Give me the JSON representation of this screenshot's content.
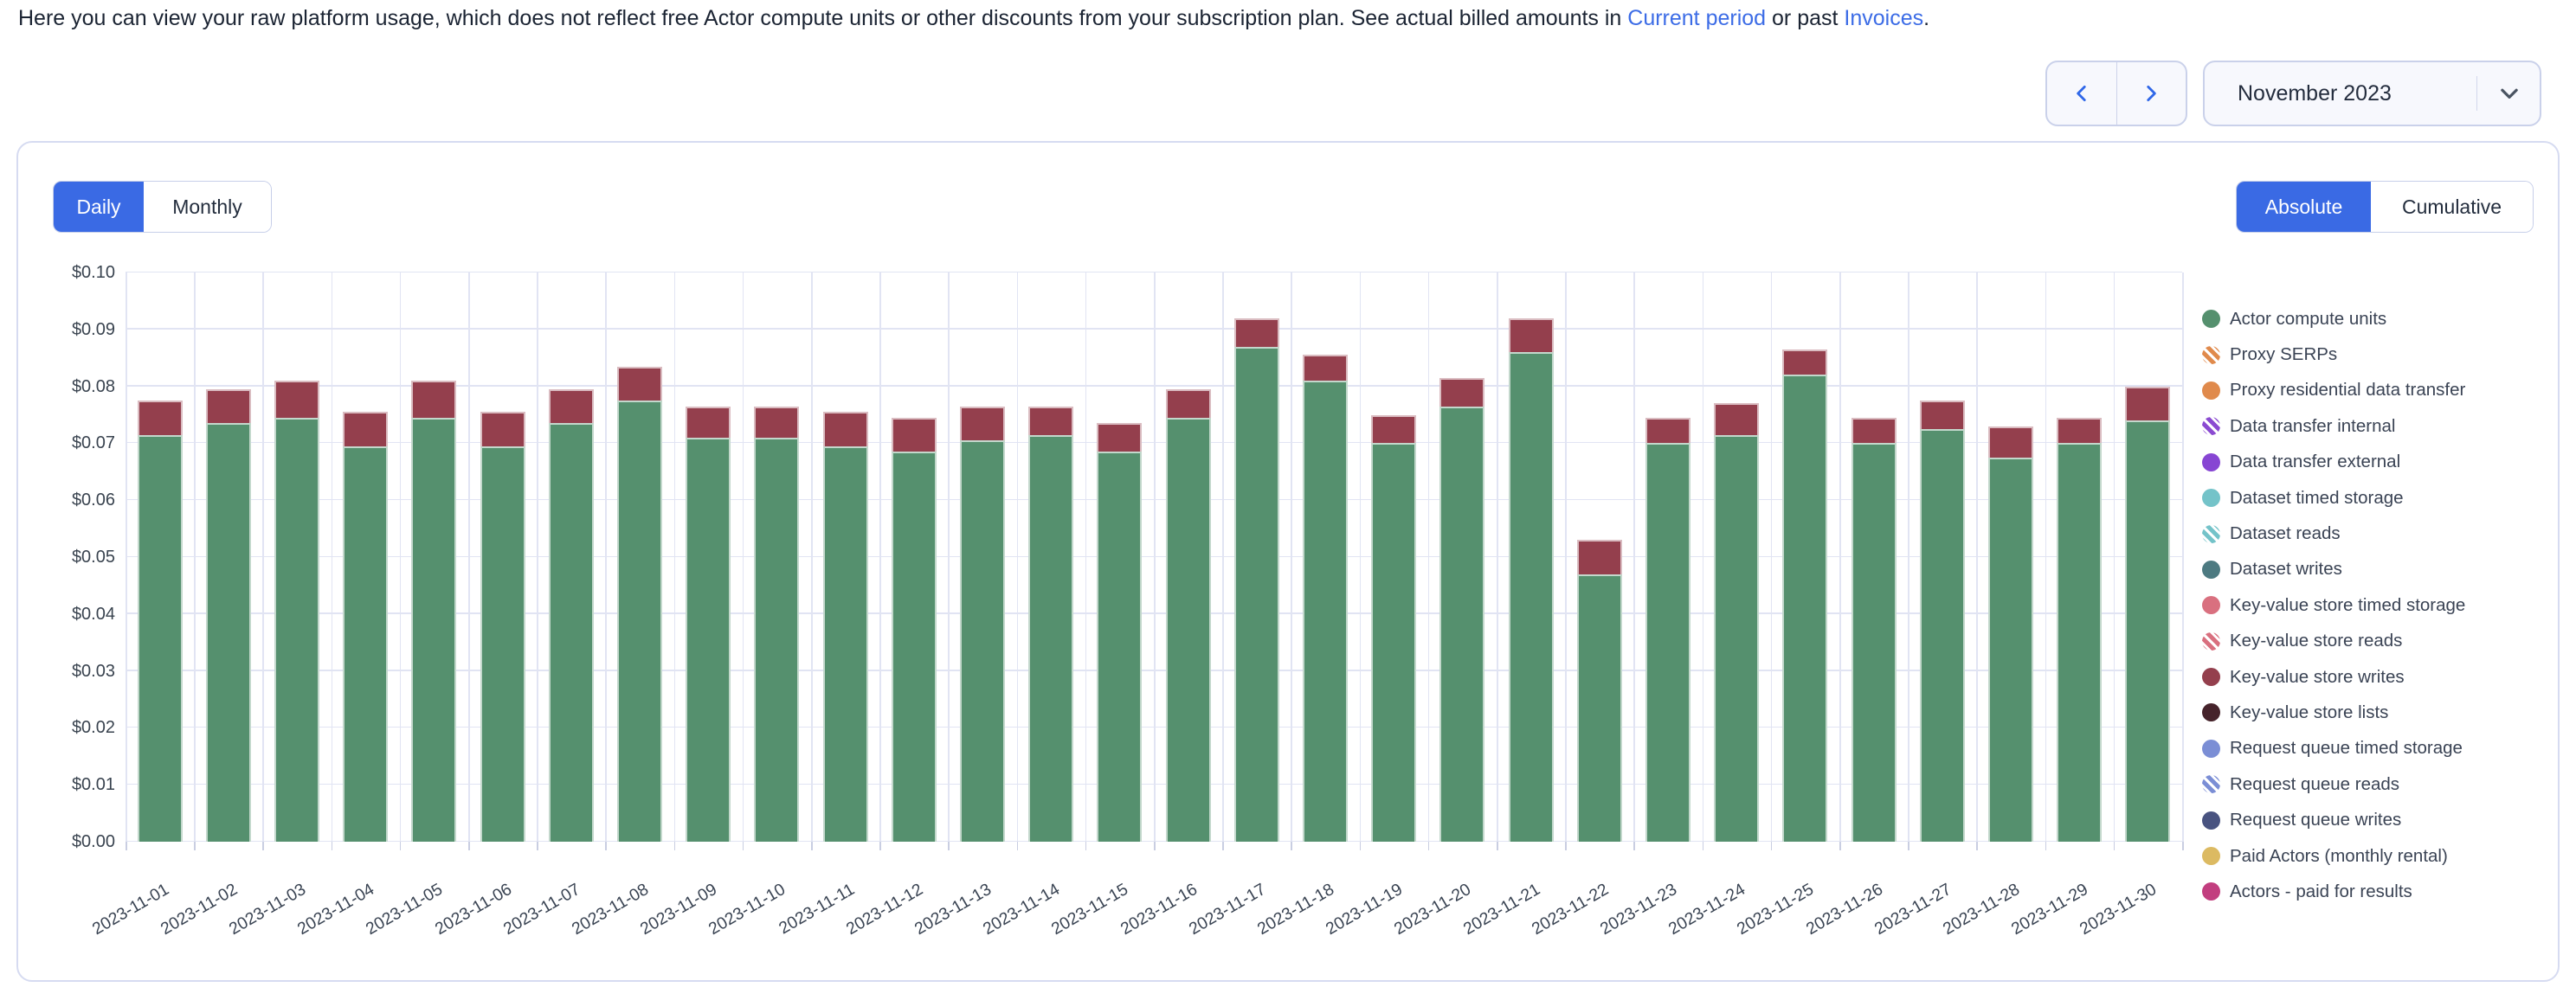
{
  "intro": {
    "text_before_link1": "Here you can view your raw platform usage, which does not reflect free Actor compute units or other discounts from your subscription plan. See actual billed amounts in ",
    "link1": "Current period",
    "text_between_links": " or past ",
    "link2": "Invoices",
    "text_after_links": "."
  },
  "controls": {
    "prev_icon": "chevron-left-icon",
    "next_icon": "chevron-right-icon",
    "month_label": "November 2023",
    "dropdown_icon": "chevron-down-icon",
    "accent_blue": "#3a6ae4"
  },
  "toggles": {
    "daily": "Daily",
    "monthly": "Monthly",
    "absolute": "Absolute",
    "cumulative": "Cumulative",
    "selected_granularity": "Daily",
    "selected_mode": "Absolute"
  },
  "chart_data": {
    "type": "bar",
    "stacked": true,
    "title": "",
    "xlabel": "",
    "ylabel": "",
    "ylim": [
      0,
      0.1
    ],
    "y_ticks": [
      "$0.00",
      "$0.01",
      "$0.02",
      "$0.03",
      "$0.04",
      "$0.05",
      "$0.06",
      "$0.07",
      "$0.08",
      "$0.09",
      "$0.10"
    ],
    "grid": true,
    "legend_position": "right",
    "categories": [
      "2023-11-01",
      "2023-11-02",
      "2023-11-03",
      "2023-11-04",
      "2023-11-05",
      "2023-11-06",
      "2023-11-07",
      "2023-11-08",
      "2023-11-09",
      "2023-11-10",
      "2023-11-11",
      "2023-11-12",
      "2023-11-13",
      "2023-11-14",
      "2023-11-15",
      "2023-11-16",
      "2023-11-17",
      "2023-11-18",
      "2023-11-19",
      "2023-11-20",
      "2023-11-21",
      "2023-11-22",
      "2023-11-23",
      "2023-11-24",
      "2023-11-25",
      "2023-11-26",
      "2023-11-27",
      "2023-11-28",
      "2023-11-29",
      "2023-11-30"
    ],
    "series": [
      {
        "name": "Actor compute units",
        "color": "#55906e",
        "values": [
          0.0715,
          0.0735,
          0.0745,
          0.0695,
          0.0745,
          0.0695,
          0.0735,
          0.0775,
          0.071,
          0.071,
          0.0695,
          0.0685,
          0.0705,
          0.0715,
          0.0685,
          0.0745,
          0.087,
          0.081,
          0.07,
          0.0765,
          0.086,
          0.047,
          0.07,
          0.0715,
          0.082,
          0.07,
          0.0725,
          0.0675,
          0.07,
          0.074
        ]
      },
      {
        "name": "Key-value store writes",
        "color": "#943f4d",
        "values": [
          0.006,
          0.006,
          0.0065,
          0.006,
          0.0065,
          0.006,
          0.006,
          0.006,
          0.0055,
          0.0055,
          0.006,
          0.006,
          0.006,
          0.005,
          0.005,
          0.005,
          0.005,
          0.0045,
          0.005,
          0.005,
          0.006,
          0.006,
          0.0045,
          0.0055,
          0.0045,
          0.0045,
          0.005,
          0.0055,
          0.0045,
          0.006
        ]
      }
    ],
    "legend": [
      {
        "label": "Actor compute units",
        "color": "#55906e",
        "hatch": false
      },
      {
        "label": "Proxy SERPs",
        "color": "#e08a4c",
        "hatch": true
      },
      {
        "label": "Proxy residential data transfer",
        "color": "#e08a4c",
        "hatch": false
      },
      {
        "label": "Data transfer internal",
        "color": "#8b4bd1",
        "hatch": true
      },
      {
        "label": "Data transfer external",
        "color": "#8746d3",
        "hatch": false
      },
      {
        "label": "Dataset timed storage",
        "color": "#74c3c9",
        "hatch": false
      },
      {
        "label": "Dataset reads",
        "color": "#74c3c9",
        "hatch": true
      },
      {
        "label": "Dataset writes",
        "color": "#4d7a81",
        "hatch": false
      },
      {
        "label": "Key-value store timed storage",
        "color": "#d9707f",
        "hatch": false
      },
      {
        "label": "Key-value store reads",
        "color": "#d9707f",
        "hatch": true
      },
      {
        "label": "Key-value store writes",
        "color": "#943f4d",
        "hatch": false
      },
      {
        "label": "Key-value store lists",
        "color": "#46232b",
        "hatch": false
      },
      {
        "label": "Request queue timed storage",
        "color": "#7b8ed5",
        "hatch": false
      },
      {
        "label": "Request queue reads",
        "color": "#7b8ed5",
        "hatch": true
      },
      {
        "label": "Request queue writes",
        "color": "#495380",
        "hatch": false
      },
      {
        "label": "Paid Actors (monthly rental)",
        "color": "#dcba62",
        "hatch": false
      },
      {
        "label": "Actors - paid for results",
        "color": "#c23e7f",
        "hatch": false
      }
    ]
  }
}
